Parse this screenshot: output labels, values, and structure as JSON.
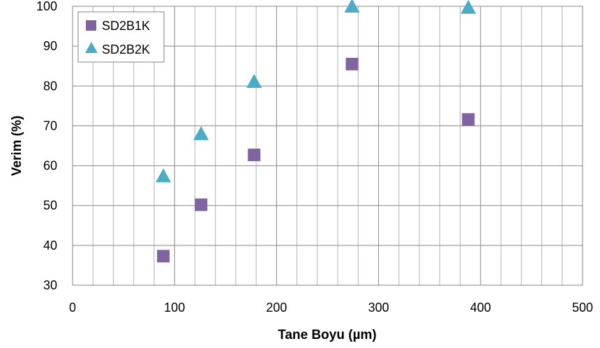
{
  "chart_data": {
    "type": "scatter",
    "xlabel": "Tane Boyu (µm)",
    "ylabel": "Verim (%)",
    "xlim": [
      0,
      500
    ],
    "ylim": [
      30,
      100
    ],
    "xticks": [
      0,
      100,
      200,
      300,
      400,
      500
    ],
    "yticks": [
      30,
      40,
      50,
      60,
      70,
      80,
      90,
      100
    ],
    "x_minor_step": 20,
    "grid": true,
    "legend_position": "top-left",
    "series": [
      {
        "name": "SD2B1K",
        "marker": "square",
        "color": "#8064A2",
        "points": [
          {
            "x": 89,
            "y": 37.3
          },
          {
            "x": 126,
            "y": 50.2
          },
          {
            "x": 178,
            "y": 62.7
          },
          {
            "x": 274,
            "y": 85.5
          },
          {
            "x": 388,
            "y": 71.6
          }
        ]
      },
      {
        "name": "SD2B2K",
        "marker": "triangle",
        "color": "#4BACC6",
        "points": [
          {
            "x": 89,
            "y": 57.4
          },
          {
            "x": 126,
            "y": 68.0
          },
          {
            "x": 178,
            "y": 81.1
          },
          {
            "x": 274,
            "y": 100.0
          },
          {
            "x": 388,
            "y": 99.7
          }
        ]
      }
    ]
  }
}
